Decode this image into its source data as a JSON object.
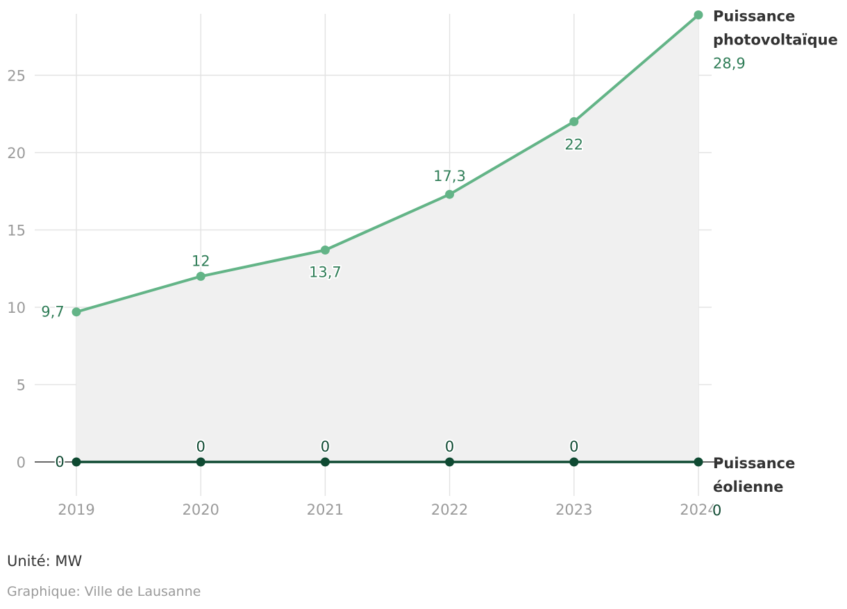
{
  "chart_data": {
    "type": "line",
    "x": [
      "2019",
      "2020",
      "2021",
      "2022",
      "2023",
      "2024"
    ],
    "ylim": [
      0,
      29
    ],
    "yticks": [
      "0",
      "5",
      "10",
      "15",
      "20",
      "25"
    ],
    "grid": true,
    "series": [
      {
        "name_lines": [
          "Puissance",
          "photovoltaïque"
        ],
        "values": [
          9.7,
          12,
          13.7,
          17.3,
          22,
          28.9
        ],
        "labels": [
          "9,7",
          "12",
          "13,7",
          "17,3",
          "22",
          "28,9"
        ],
        "color": "#63b487",
        "label_color": "#2f7d57",
        "area_fill": "#f0f0f0"
      },
      {
        "name_lines": [
          "Puissance",
          "éolienne"
        ],
        "values": [
          0,
          0,
          0,
          0,
          0,
          0
        ],
        "labels": [
          "0",
          "0",
          "0",
          "0",
          "0",
          "0"
        ],
        "color": "#0f4a32",
        "label_color": "#0f4a32"
      }
    ]
  },
  "footer": {
    "unit": "Unité: MW",
    "credit": "Graphique: Ville de Lausanne"
  }
}
